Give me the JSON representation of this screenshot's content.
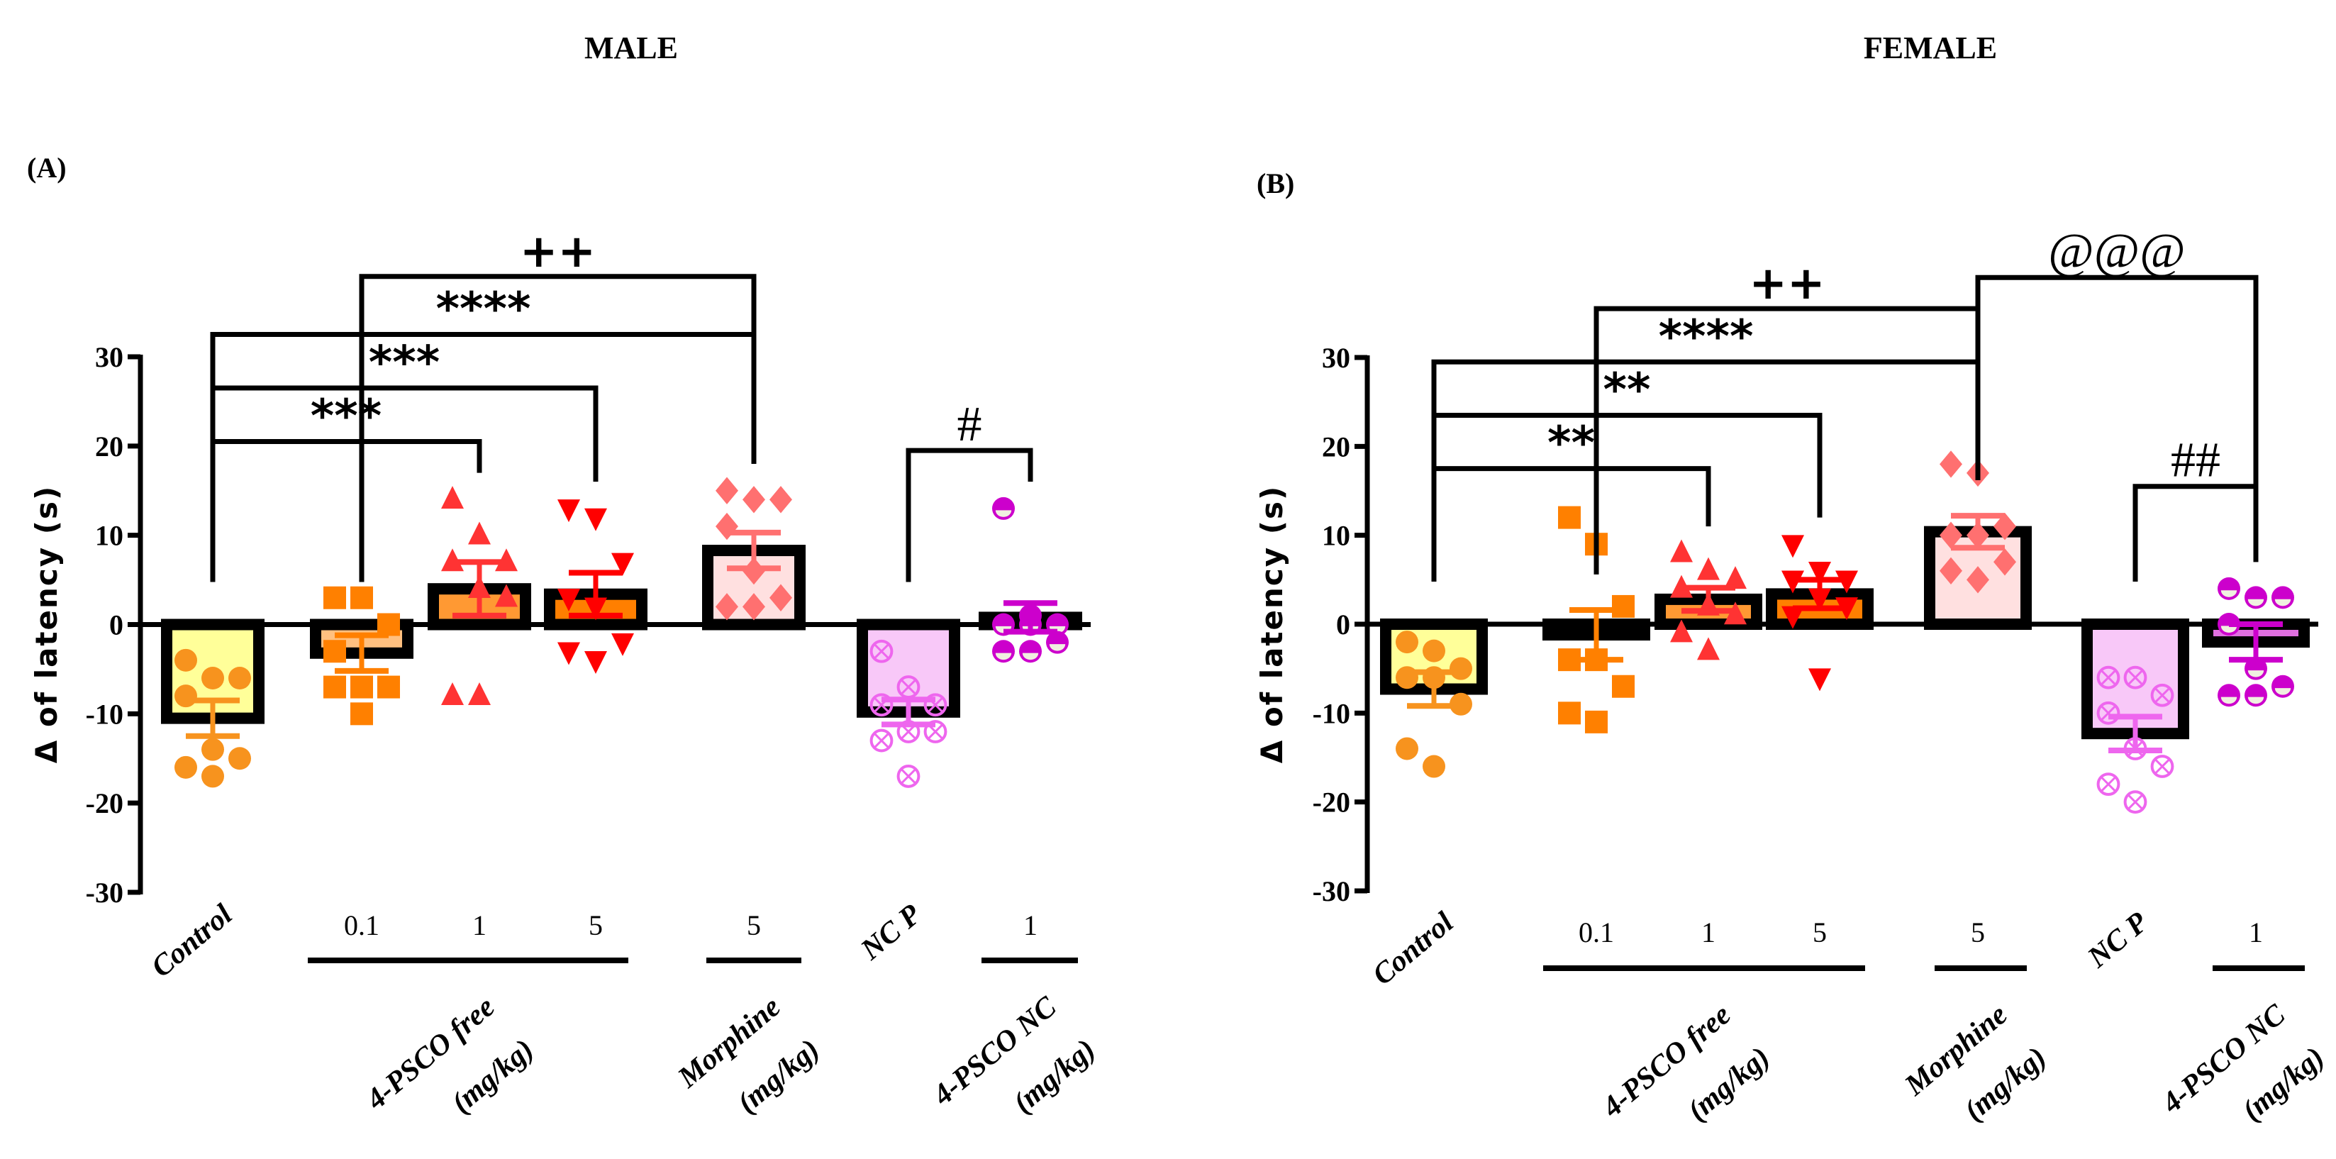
{
  "chart_data": [
    {
      "type": "bar",
      "panel_label": "(A)",
      "title": "MALE",
      "ylabel": "Δ of latency (s)",
      "xlabel": "",
      "ylim": [
        -30,
        30
      ],
      "yticks": [
        30,
        20,
        10,
        0,
        -10,
        -20,
        -30
      ],
      "grid": false,
      "categories": [
        "Control",
        "0.1",
        "1",
        "5",
        "5",
        "NC P",
        "1"
      ],
      "group_labels": [
        {
          "text": "Control",
          "lines": [
            "Control"
          ]
        },
        {
          "text": "4-PSCO free (mg/kg)",
          "lines": [
            "4-PSCO free",
            "(mg/kg)"
          ],
          "doses": [
            "0.1",
            "1",
            "5"
          ]
        },
        {
          "text": "Morphine (mg/kg)",
          "lines": [
            "Morphine",
            "(mg/kg)"
          ],
          "doses": [
            "5"
          ]
        },
        {
          "text": "NC P",
          "lines": [
            "NC P"
          ]
        },
        {
          "text": "4-PSCO NC (mg/kg)",
          "lines": [
            "4-PSCO NC",
            "(mg/kg)"
          ],
          "doses": [
            "1"
          ]
        }
      ],
      "series": [
        {
          "name": "Control",
          "mean": -10.5,
          "sem": 2.0,
          "marker": "circle",
          "color": "#f7931e",
          "fill": "#ffff99",
          "points": [
            -4,
            -6,
            -6,
            -8,
            -14,
            -15,
            -16,
            -17
          ]
        },
        {
          "name": "4-PSCO free 0.1 mg/kg",
          "mean": -3.2,
          "sem": 2.0,
          "marker": "square",
          "color": "#ff8000",
          "fill": "#ffc080",
          "points": [
            3,
            3,
            0,
            -3,
            -7,
            -7,
            -7,
            -10
          ]
        },
        {
          "name": "4-PSCO free 1 mg/kg",
          "mean": 4.0,
          "sem": 3.0,
          "marker": "triangle-up",
          "color": "#ff3333",
          "fill": "#ff9933",
          "points": [
            14,
            10,
            7,
            7,
            4,
            3,
            -8,
            -8
          ]
        },
        {
          "name": "4-PSCO free 5 mg/kg",
          "mean": 3.4,
          "sem": 2.4,
          "marker": "triangle-down",
          "color": "#ff0000",
          "fill": "#ff7f00",
          "points": [
            13,
            12,
            7,
            3,
            2,
            -2,
            -3,
            -4
          ]
        },
        {
          "name": "Morphine 5 mg/kg",
          "mean": 8.3,
          "sem": 2.0,
          "marker": "diamond",
          "color": "#ff7070",
          "fill": "#ffe0e0",
          "points": [
            15,
            14,
            14,
            11,
            6,
            3,
            2,
            2
          ]
        },
        {
          "name": "NC P",
          "mean": -9.8,
          "sem": 1.4,
          "marker": "circle-cross",
          "color": "#ee66ee",
          "fill": "#f8c8f8",
          "points": [
            -3,
            -7,
            -9,
            -9,
            -12,
            -12,
            -13,
            -17
          ]
        },
        {
          "name": "4-PSCO NC 1 mg/kg",
          "mean": 0.8,
          "sem": 1.6,
          "marker": "half-circle",
          "color": "#cc00cc",
          "fill": "#e070e0",
          "points": [
            13,
            1,
            0,
            0,
            0,
            -2,
            -3,
            -3
          ]
        }
      ],
      "annotations": [
        {
          "text": "***",
          "from": 0,
          "to": 2,
          "level": 20.5
        },
        {
          "text": "***",
          "from": 0,
          "to": 3,
          "level": 26.5
        },
        {
          "text": "****",
          "from": 0,
          "to": 4,
          "level": 32.5
        },
        {
          "text": "++",
          "from": 1,
          "to": 4,
          "level": 39
        },
        {
          "text": "#",
          "from": 5,
          "to": 6,
          "level": 19.5
        }
      ]
    },
    {
      "type": "bar",
      "panel_label": "(B)",
      "title": "FEMALE",
      "ylabel": "Δ of latency (s)",
      "xlabel": "",
      "ylim": [
        -30,
        30
      ],
      "yticks": [
        30,
        20,
        10,
        0,
        -10,
        -20,
        -30
      ],
      "grid": false,
      "categories": [
        "Control",
        "0.1",
        "1",
        "5",
        "5",
        "NC P",
        "1"
      ],
      "group_labels": [
        {
          "text": "Control",
          "lines": [
            "Control"
          ]
        },
        {
          "text": "4-PSCO free (mg/kg)",
          "lines": [
            "4-PSCO free",
            "(mg/kg)"
          ],
          "doses": [
            "0.1",
            "1",
            "5"
          ]
        },
        {
          "text": "Morphine (mg/kg)",
          "lines": [
            "Morphine",
            "(mg/kg)"
          ],
          "doses": [
            "5"
          ]
        },
        {
          "text": "NC P",
          "lines": [
            "NC P"
          ]
        },
        {
          "text": "4-PSCO NC (mg/kg)",
          "lines": [
            "4-PSCO NC",
            "(mg/kg)"
          ],
          "doses": [
            "1"
          ]
        }
      ],
      "series": [
        {
          "name": "Control",
          "mean": -7.3,
          "sem": 1.9,
          "marker": "circle",
          "color": "#f7931e",
          "fill": "#ffff99",
          "points": [
            -2,
            -3,
            -5,
            -6,
            -6,
            -9,
            -14,
            -16
          ]
        },
        {
          "name": "4-PSCO free 0.1 mg/kg",
          "mean": -1.2,
          "sem": 2.8,
          "marker": "square",
          "color": "#ff8000",
          "fill": "#ffc080",
          "points": [
            12,
            9,
            2,
            -4,
            -4,
            -7,
            -10,
            -11
          ]
        },
        {
          "name": "4-PSCO free 1 mg/kg",
          "mean": 2.8,
          "sem": 1.3,
          "marker": "triangle-up",
          "color": "#ff3333",
          "fill": "#ff9933",
          "points": [
            8,
            6,
            5,
            4,
            2,
            1,
            -1,
            -3
          ]
        },
        {
          "name": "4-PSCO free 5 mg/kg",
          "mean": 3.4,
          "sem": 1.6,
          "marker": "triangle-down",
          "color": "#ff0000",
          "fill": "#ff7f00",
          "points": [
            9,
            6,
            5,
            5,
            3,
            2,
            1,
            -6
          ]
        },
        {
          "name": "Morphine 5 mg/kg",
          "mean": 10.4,
          "sem": 1.8,
          "marker": "diamond",
          "color": "#ff7070",
          "fill": "#ffe0e0",
          "points": [
            18,
            17,
            11,
            10,
            10,
            7,
            6,
            5
          ]
        },
        {
          "name": "NC P",
          "mean": -12.3,
          "sem": 1.9,
          "marker": "circle-cross",
          "color": "#ee66ee",
          "fill": "#f8c8f8",
          "points": [
            -6,
            -6,
            -8,
            -10,
            -14,
            -16,
            -18,
            -20
          ]
        },
        {
          "name": "4-PSCO NC 1 mg/kg",
          "mean": -2.0,
          "sem": 2.0,
          "marker": "half-circle",
          "color": "#cc00cc",
          "fill": "#e070e0",
          "points": [
            4,
            3,
            3,
            0,
            -5,
            -7,
            -8,
            -8
          ]
        }
      ],
      "annotations": [
        {
          "text": "**",
          "from": 0,
          "to": 2,
          "level": 17.5
        },
        {
          "text": "**",
          "from": 0,
          "to": 3,
          "level": 23.5
        },
        {
          "text": "****",
          "from": 0,
          "to": 4,
          "level": 29.5
        },
        {
          "text": "++",
          "from": 1,
          "to": 4,
          "level": 35.5
        },
        {
          "text": "@@@",
          "from": 4,
          "to": 6,
          "level": 39
        },
        {
          "text": "##",
          "from": 5,
          "to": 6,
          "level": 15.5
        }
      ]
    }
  ]
}
